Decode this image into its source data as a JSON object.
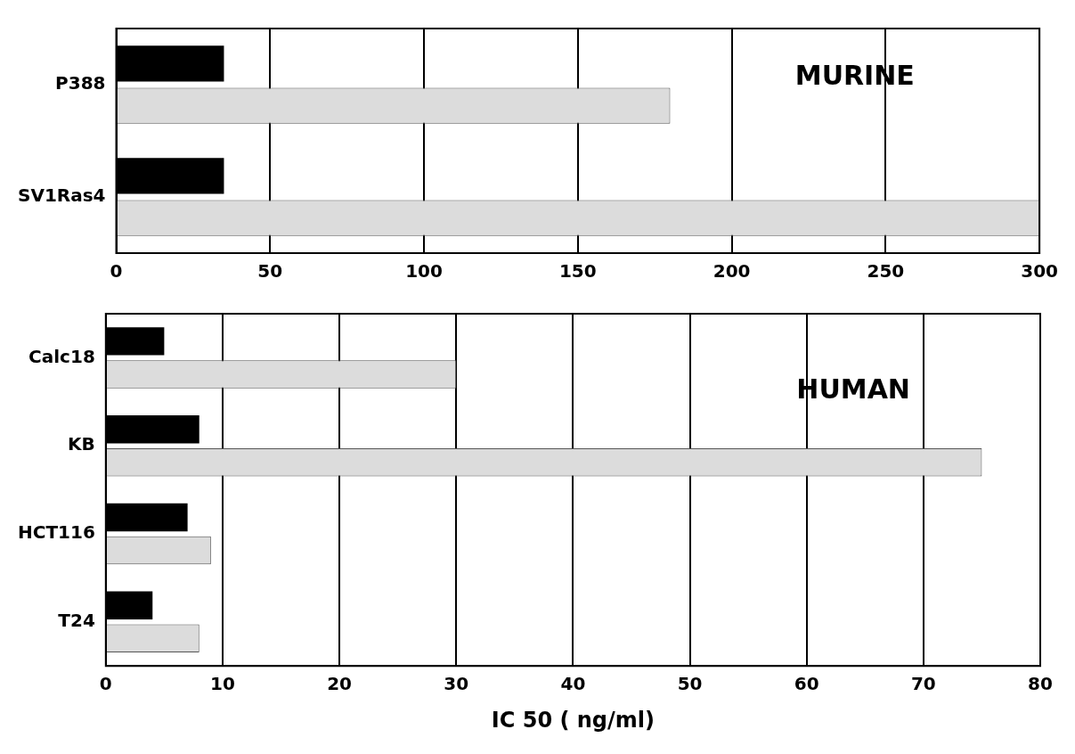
{
  "chart_data": [
    {
      "type": "bar",
      "orientation": "horizontal",
      "categories": [
        "P388",
        "SV1Ras4"
      ],
      "series": [
        {
          "color": "#000000",
          "values": [
            35,
            35
          ]
        },
        {
          "color": "#dcdcdc",
          "values": [
            180,
            300
          ]
        }
      ],
      "xlim": [
        0,
        300
      ],
      "xticks": [
        0,
        50,
        100,
        150,
        200,
        250,
        300
      ],
      "grid": "x",
      "annotations": [
        "MURINE"
      ]
    },
    {
      "type": "bar",
      "orientation": "horizontal",
      "categories": [
        "Calc18",
        "KB",
        "HCT116",
        "T24"
      ],
      "series": [
        {
          "color": "#000000",
          "values": [
            5,
            8,
            7,
            4
          ]
        },
        {
          "color": "#dcdcdc",
          "values": [
            30,
            75,
            9,
            8
          ]
        }
      ],
      "xlim": [
        0,
        80
      ],
      "xticks": [
        0,
        10,
        20,
        30,
        40,
        50,
        60,
        70,
        80
      ],
      "grid": "x",
      "annotations": [
        "HUMAN"
      ],
      "xlabel": "IC 50 ( ng/ml)"
    }
  ]
}
